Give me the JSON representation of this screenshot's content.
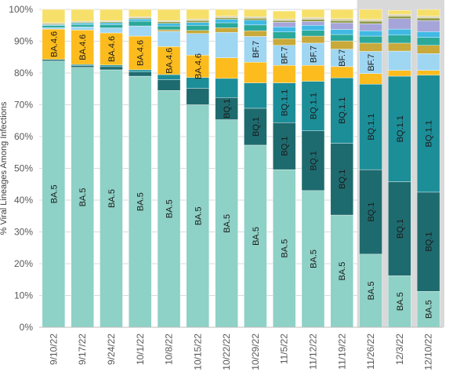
{
  "chart_data": {
    "type": "bar",
    "stacked": true,
    "orientation": "vertical",
    "ylabel": "% Viral Lineages Among Infections",
    "xlabel": "",
    "ylim": [
      0,
      100
    ],
    "y_ticks": [
      "0%",
      "10%",
      "20%",
      "30%",
      "40%",
      "50%",
      "60%",
      "70%",
      "80%",
      "90%",
      "100%"
    ],
    "grid": true,
    "legend": "none",
    "categories": [
      "9/10/22",
      "9/17/22",
      "9/24/22",
      "10/1/22",
      "10/8/22",
      "10/15/22",
      "10/22/22",
      "10/29/22",
      "11/5/22",
      "11/12/22",
      "11/19/22",
      "11/26/22",
      "12/3/22",
      "12/10/22"
    ],
    "highlighted_categories": [
      "11/26/22",
      "12/3/22",
      "12/10/22"
    ],
    "series": [
      {
        "name": "BA.5",
        "color": "#8ed1c6",
        "values": [
          83.8,
          81.8,
          81.0,
          79.0,
          74.5,
          70.0,
          65.3,
          57.3,
          49.6,
          43.0,
          35.3,
          23.0,
          16.2,
          11.3
        ]
      },
      {
        "name": "BQ.1",
        "color": "#1e6b6f",
        "values": [
          0.5,
          0.5,
          1.0,
          1.3,
          3.4,
          5.2,
          7.0,
          11.6,
          14.8,
          18.8,
          22.6,
          26.6,
          29.6,
          31.2
        ]
      },
      {
        "name": "BQ.1.1",
        "color": "#1c8e98",
        "values": [
          0,
          0.4,
          0.5,
          0.7,
          1.6,
          3.4,
          6.0,
          8.0,
          12.5,
          15.6,
          20.6,
          26.9,
          33.2,
          36.8
        ]
      },
      {
        "name": "BA.4.6",
        "color": "#fcbc1e",
        "values": [
          9.5,
          10.8,
          10.1,
          10.6,
          8.8,
          7.0,
          6.5,
          6.5,
          5.5,
          5.0,
          3.5,
          3.3,
          1.8,
          1.5
        ]
      },
      {
        "name": "BF.7",
        "color": "#9fd6f2",
        "values": [
          0.5,
          1.0,
          1.6,
          3.2,
          4.8,
          6.8,
          8.0,
          8.1,
          6.3,
          7.0,
          5.5,
          7.0,
          6.1,
          5.3
        ]
      },
      {
        "name": "Other",
        "color": "#c8a93a",
        "values": [
          0,
          0,
          0,
          0,
          0.5,
          1.0,
          1.4,
          1.8,
          2.1,
          2.2,
          2.6,
          2.6,
          2.5,
          2.6
        ]
      },
      {
        "name": "Other",
        "color": "#2aa89a",
        "values": [
          0.6,
          0.7,
          1.0,
          1.5,
          1.2,
          1.6,
          1.6,
          1.8,
          2.1,
          1.8,
          2.0,
          2.2,
          2.5,
          2.5
        ]
      },
      {
        "name": "Other",
        "color": "#40b9e4",
        "values": [
          0.3,
          0.5,
          0.6,
          0.7,
          0.8,
          0.9,
          1.1,
          1.5,
          1.6,
          1.6,
          1.6,
          1.7,
          1.9,
          1.8
        ]
      },
      {
        "name": "Other",
        "color": "#a6a5d9",
        "values": [
          0,
          0,
          0,
          0,
          0,
          0,
          0,
          0,
          1.5,
          1.2,
          2.1,
          2.2,
          3.3,
          3.5
        ]
      },
      {
        "name": "Other",
        "color": "#8f9b47",
        "values": [
          0.3,
          0.3,
          0.3,
          0.3,
          0.5,
          0.6,
          0.5,
          0.6,
          0.5,
          0.7,
          0.7,
          0.8,
          0.8,
          0.8
        ]
      },
      {
        "name": "Other",
        "color": "#d9d2b0",
        "values": [
          0.3,
          0.3,
          0.4,
          0.4,
          0.4,
          0.5,
          0.5,
          0.5,
          0.5,
          0.6,
          0.6,
          0.6,
          0.6,
          0.6
        ]
      },
      {
        "name": "Other",
        "color": "#f7e06a",
        "values": [
          4.2,
          3.7,
          3.5,
          2.3,
          3.5,
          3.0,
          2.1,
          2.3,
          2.5,
          2.5,
          2.9,
          3.1,
          1.2,
          2.1
        ]
      }
    ],
    "segment_labels": [
      [
        "BA.5",
        null,
        null,
        "BA.4.6",
        null,
        null,
        null,
        null,
        null,
        null,
        null,
        null
      ],
      [
        "BA.5",
        null,
        null,
        "BA.4.6",
        null,
        null,
        null,
        null,
        null,
        null,
        null,
        null
      ],
      [
        "BA.5",
        null,
        null,
        "BA.4.6",
        null,
        null,
        null,
        null,
        null,
        null,
        null,
        null
      ],
      [
        "BA.5",
        null,
        null,
        "BA.4.6",
        null,
        null,
        null,
        null,
        null,
        null,
        null,
        null
      ],
      [
        "BA.5",
        null,
        null,
        "BA.4.6",
        null,
        null,
        null,
        null,
        null,
        null,
        null,
        null
      ],
      [
        "BA.5",
        null,
        null,
        "BA.4.6",
        null,
        null,
        null,
        null,
        null,
        null,
        null,
        null
      ],
      [
        "BA.5",
        "BQ.1",
        null,
        null,
        null,
        null,
        null,
        null,
        null,
        null,
        null,
        null
      ],
      [
        "BA.5",
        "BQ.1",
        null,
        null,
        "BF.7",
        null,
        null,
        null,
        null,
        null,
        null,
        null
      ],
      [
        "BA.5",
        "BQ.1",
        "BQ.1.1",
        null,
        "BF.7",
        null,
        null,
        null,
        null,
        null,
        null,
        null
      ],
      [
        "BA.5",
        "BQ.1",
        "BQ.1.1",
        null,
        "BF.7",
        null,
        null,
        null,
        null,
        null,
        null,
        null
      ],
      [
        "BA.5",
        "BQ.1",
        "BQ.1.1",
        null,
        "BF.7",
        null,
        null,
        null,
        null,
        null,
        null,
        null
      ],
      [
        "BA.5",
        "BQ.1",
        "BQ.1.1",
        null,
        "BF.7",
        null,
        null,
        null,
        null,
        null,
        null,
        null
      ],
      [
        "BA.5",
        "BQ.1",
        "BQ.1.1",
        null,
        null,
        null,
        null,
        null,
        null,
        null,
        null,
        null
      ],
      [
        "BA.5",
        "BQ.1",
        "BQ.1.1",
        null,
        null,
        null,
        null,
        null,
        null,
        null,
        null,
        null
      ]
    ],
    "colors": {
      "grid": "#d9d9d9",
      "axis": "#bfbfbf",
      "tick_text": "#595959",
      "highlight_bg": "#d9d9d9",
      "segment_stroke": "#ffffff"
    }
  }
}
